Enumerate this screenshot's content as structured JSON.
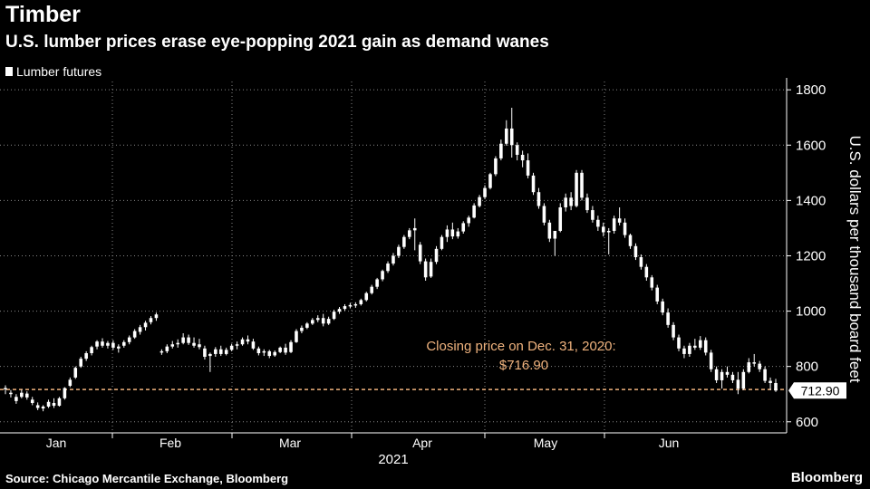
{
  "header": {
    "kicker": "Timber",
    "headline": "U.S. lumber prices erase eye-popping 2021 gain as demand wanes"
  },
  "footer": {
    "source": "Source: Chicago Mercantile Exchange, Bloomberg",
    "brand": "Bloomberg"
  },
  "colors": {
    "background": "#000000",
    "candle": "#ffffff",
    "reference_line": "#f0b37e",
    "grid": "#888888"
  },
  "chart_data": {
    "type": "candlestick",
    "legend": [
      "Lumber futures"
    ],
    "ylabel": "U.S. dollars per thousand board feet",
    "ylim": [
      560,
      1830
    ],
    "yticks": [
      600,
      800,
      1000,
      1200,
      1400,
      1600,
      1800
    ],
    "x_tick_labels": [
      "Jan",
      "Feb",
      "Mar",
      "Apr",
      "May",
      "Jun"
    ],
    "x_year_label": "2021",
    "last_value_label": "712.90",
    "reference_line": {
      "value": 716.9,
      "label_line1": "Closing price on Dec. 31, 2020:",
      "label_line2": "$716.90"
    },
    "series": [
      {
        "name": "Lumber futures",
        "values": [
          {
            "o": 717,
            "h": 732,
            "l": 700,
            "c": 722
          },
          {
            "o": 705,
            "h": 715,
            "l": 688,
            "c": 700
          },
          {
            "o": 690,
            "h": 700,
            "l": 665,
            "c": 675
          },
          {
            "o": 690,
            "h": 716,
            "l": 685,
            "c": 705
          },
          {
            "o": 702,
            "h": 710,
            "l": 680,
            "c": 688
          },
          {
            "o": 680,
            "h": 690,
            "l": 660,
            "c": 668
          },
          {
            "o": 660,
            "h": 670,
            "l": 642,
            "c": 650
          },
          {
            "o": 648,
            "h": 660,
            "l": 638,
            "c": 655
          },
          {
            "o": 655,
            "h": 680,
            "l": 650,
            "c": 672
          },
          {
            "o": 668,
            "h": 685,
            "l": 650,
            "c": 658
          },
          {
            "o": 658,
            "h": 690,
            "l": 655,
            "c": 685
          },
          {
            "o": 685,
            "h": 725,
            "l": 680,
            "c": 722
          },
          {
            "o": 730,
            "h": 760,
            "l": 725,
            "c": 752
          },
          {
            "o": 760,
            "h": 800,
            "l": 755,
            "c": 795
          },
          {
            "o": 800,
            "h": 835,
            "l": 795,
            "c": 828
          },
          {
            "o": 828,
            "h": 855,
            "l": 820,
            "c": 848
          },
          {
            "o": 848,
            "h": 875,
            "l": 840,
            "c": 870
          },
          {
            "o": 872,
            "h": 895,
            "l": 862,
            "c": 890
          },
          {
            "o": 890,
            "h": 902,
            "l": 868,
            "c": 875
          },
          {
            "o": 875,
            "h": 892,
            "l": 865,
            "c": 885
          },
          {
            "o": 885,
            "h": 895,
            "l": 860,
            "c": 868
          },
          {
            "o": 865,
            "h": 880,
            "l": 850,
            "c": 872
          },
          {
            "o": 875,
            "h": 895,
            "l": 868,
            "c": 888
          },
          {
            "o": 888,
            "h": 912,
            "l": 880,
            "c": 905
          },
          {
            "o": 905,
            "h": 935,
            "l": 900,
            "c": 928
          },
          {
            "o": 925,
            "h": 950,
            "l": 915,
            "c": 942
          },
          {
            "o": 942,
            "h": 965,
            "l": 930,
            "c": 958
          },
          {
            "o": 960,
            "h": 982,
            "l": 952,
            "c": 975
          },
          {
            "o": 975,
            "h": 995,
            "l": 965,
            "c": 988
          },
          {
            "o": 850,
            "h": 862,
            "l": 842,
            "c": 855
          },
          {
            "o": 855,
            "h": 880,
            "l": 848,
            "c": 872
          },
          {
            "o": 872,
            "h": 892,
            "l": 865,
            "c": 880
          },
          {
            "o": 880,
            "h": 898,
            "l": 868,
            "c": 885
          },
          {
            "o": 885,
            "h": 920,
            "l": 880,
            "c": 905
          },
          {
            "o": 905,
            "h": 915,
            "l": 878,
            "c": 885
          },
          {
            "o": 885,
            "h": 905,
            "l": 868,
            "c": 875
          },
          {
            "o": 880,
            "h": 900,
            "l": 862,
            "c": 870
          },
          {
            "o": 865,
            "h": 875,
            "l": 825,
            "c": 835
          },
          {
            "o": 838,
            "h": 850,
            "l": 780,
            "c": 845
          },
          {
            "o": 845,
            "h": 870,
            "l": 835,
            "c": 862
          },
          {
            "o": 862,
            "h": 875,
            "l": 838,
            "c": 845
          },
          {
            "o": 845,
            "h": 868,
            "l": 840,
            "c": 860
          },
          {
            "o": 860,
            "h": 882,
            "l": 855,
            "c": 875
          },
          {
            "o": 875,
            "h": 890,
            "l": 862,
            "c": 880
          },
          {
            "o": 880,
            "h": 905,
            "l": 875,
            "c": 898
          },
          {
            "o": 898,
            "h": 912,
            "l": 880,
            "c": 890
          },
          {
            "o": 890,
            "h": 900,
            "l": 860,
            "c": 865
          },
          {
            "o": 865,
            "h": 872,
            "l": 840,
            "c": 848
          },
          {
            "o": 850,
            "h": 862,
            "l": 838,
            "c": 855
          },
          {
            "o": 855,
            "h": 860,
            "l": 830,
            "c": 838
          },
          {
            "o": 840,
            "h": 858,
            "l": 835,
            "c": 852
          },
          {
            "o": 852,
            "h": 872,
            "l": 848,
            "c": 868
          },
          {
            "o": 868,
            "h": 882,
            "l": 842,
            "c": 850
          },
          {
            "o": 852,
            "h": 895,
            "l": 848,
            "c": 888
          },
          {
            "o": 888,
            "h": 935,
            "l": 885,
            "c": 928
          },
          {
            "o": 928,
            "h": 948,
            "l": 920,
            "c": 940
          },
          {
            "o": 940,
            "h": 960,
            "l": 935,
            "c": 955
          },
          {
            "o": 955,
            "h": 975,
            "l": 950,
            "c": 968
          },
          {
            "o": 968,
            "h": 985,
            "l": 960,
            "c": 975
          },
          {
            "o": 975,
            "h": 990,
            "l": 945,
            "c": 955
          },
          {
            "o": 955,
            "h": 980,
            "l": 950,
            "c": 972
          },
          {
            "o": 972,
            "h": 1005,
            "l": 968,
            "c": 998
          },
          {
            "o": 998,
            "h": 1015,
            "l": 990,
            "c": 1008
          },
          {
            "o": 1008,
            "h": 1025,
            "l": 1002,
            "c": 1018
          },
          {
            "o": 1018,
            "h": 1030,
            "l": 1010,
            "c": 1022
          },
          {
            "o": 1022,
            "h": 1032,
            "l": 1012,
            "c": 1025
          },
          {
            "o": 1025,
            "h": 1045,
            "l": 1020,
            "c": 1040
          },
          {
            "o": 1040,
            "h": 1070,
            "l": 1035,
            "c": 1065
          },
          {
            "o": 1065,
            "h": 1095,
            "l": 1060,
            "c": 1088
          },
          {
            "o": 1088,
            "h": 1120,
            "l": 1080,
            "c": 1115
          },
          {
            "o": 1115,
            "h": 1150,
            "l": 1108,
            "c": 1145
          },
          {
            "o": 1145,
            "h": 1180,
            "l": 1138,
            "c": 1172
          },
          {
            "o": 1172,
            "h": 1210,
            "l": 1165,
            "c": 1200
          },
          {
            "o": 1200,
            "h": 1240,
            "l": 1192,
            "c": 1232
          },
          {
            "o": 1232,
            "h": 1275,
            "l": 1225,
            "c": 1268
          },
          {
            "o": 1268,
            "h": 1300,
            "l": 1260,
            "c": 1292
          },
          {
            "o": 1292,
            "h": 1335,
            "l": 1220,
            "c": 1300
          },
          {
            "o": 1240,
            "h": 1250,
            "l": 1170,
            "c": 1180
          },
          {
            "o": 1180,
            "h": 1190,
            "l": 1110,
            "c": 1122
          },
          {
            "o": 1125,
            "h": 1190,
            "l": 1120,
            "c": 1178
          },
          {
            "o": 1178,
            "h": 1235,
            "l": 1170,
            "c": 1225
          },
          {
            "o": 1225,
            "h": 1275,
            "l": 1220,
            "c": 1268
          },
          {
            "o": 1268,
            "h": 1310,
            "l": 1250,
            "c": 1295
          },
          {
            "o": 1295,
            "h": 1320,
            "l": 1260,
            "c": 1270
          },
          {
            "o": 1270,
            "h": 1300,
            "l": 1262,
            "c": 1288
          },
          {
            "o": 1288,
            "h": 1325,
            "l": 1280,
            "c": 1318
          },
          {
            "o": 1318,
            "h": 1345,
            "l": 1305,
            "c": 1338
          },
          {
            "o": 1338,
            "h": 1390,
            "l": 1335,
            "c": 1382
          },
          {
            "o": 1380,
            "h": 1420,
            "l": 1375,
            "c": 1412
          },
          {
            "o": 1412,
            "h": 1455,
            "l": 1405,
            "c": 1445
          },
          {
            "o": 1445,
            "h": 1500,
            "l": 1440,
            "c": 1495
          },
          {
            "o": 1495,
            "h": 1560,
            "l": 1488,
            "c": 1552
          },
          {
            "o": 1552,
            "h": 1620,
            "l": 1545,
            "c": 1605
          },
          {
            "o": 1605,
            "h": 1690,
            "l": 1598,
            "c": 1660
          },
          {
            "o": 1660,
            "h": 1735,
            "l": 1555,
            "c": 1600
          },
          {
            "o": 1600,
            "h": 1610,
            "l": 1545,
            "c": 1565
          },
          {
            "o": 1565,
            "h": 1580,
            "l": 1520,
            "c": 1545
          },
          {
            "o": 1545,
            "h": 1570,
            "l": 1480,
            "c": 1490
          },
          {
            "o": 1490,
            "h": 1500,
            "l": 1420,
            "c": 1430
          },
          {
            "o": 1430,
            "h": 1445,
            "l": 1370,
            "c": 1380
          },
          {
            "o": 1380,
            "h": 1390,
            "l": 1310,
            "c": 1320
          },
          {
            "o": 1320,
            "h": 1330,
            "l": 1250,
            "c": 1262
          },
          {
            "o": 1262,
            "h": 1275,
            "l": 1200,
            "c": 1290
          },
          {
            "o": 1290,
            "h": 1390,
            "l": 1285,
            "c": 1375
          },
          {
            "o": 1375,
            "h": 1425,
            "l": 1360,
            "c": 1410
          },
          {
            "o": 1410,
            "h": 1430,
            "l": 1365,
            "c": 1380
          },
          {
            "o": 1380,
            "h": 1510,
            "l": 1375,
            "c": 1500
          },
          {
            "o": 1500,
            "h": 1510,
            "l": 1400,
            "c": 1410
          },
          {
            "o": 1410,
            "h": 1425,
            "l": 1355,
            "c": 1365
          },
          {
            "o": 1365,
            "h": 1380,
            "l": 1320,
            "c": 1330
          },
          {
            "o": 1330,
            "h": 1345,
            "l": 1290,
            "c": 1305
          },
          {
            "o": 1305,
            "h": 1320,
            "l": 1270,
            "c": 1285
          },
          {
            "o": 1285,
            "h": 1300,
            "l": 1205,
            "c": 1290
          },
          {
            "o": 1290,
            "h": 1345,
            "l": 1280,
            "c": 1335
          },
          {
            "o": 1335,
            "h": 1375,
            "l": 1310,
            "c": 1320
          },
          {
            "o": 1320,
            "h": 1335,
            "l": 1265,
            "c": 1275
          },
          {
            "o": 1275,
            "h": 1280,
            "l": 1225,
            "c": 1235
          },
          {
            "o": 1235,
            "h": 1245,
            "l": 1185,
            "c": 1195
          },
          {
            "o": 1195,
            "h": 1205,
            "l": 1150,
            "c": 1160
          },
          {
            "o": 1160,
            "h": 1170,
            "l": 1110,
            "c": 1122
          },
          {
            "o": 1122,
            "h": 1130,
            "l": 1075,
            "c": 1085
          },
          {
            "o": 1085,
            "h": 1095,
            "l": 1025,
            "c": 1035
          },
          {
            "o": 1035,
            "h": 1045,
            "l": 985,
            "c": 995
          },
          {
            "o": 995,
            "h": 1010,
            "l": 940,
            "c": 950
          },
          {
            "o": 950,
            "h": 960,
            "l": 895,
            "c": 905
          },
          {
            "o": 905,
            "h": 915,
            "l": 855,
            "c": 865
          },
          {
            "o": 865,
            "h": 875,
            "l": 830,
            "c": 845
          },
          {
            "o": 845,
            "h": 885,
            "l": 835,
            "c": 875
          },
          {
            "o": 875,
            "h": 900,
            "l": 860,
            "c": 868
          },
          {
            "o": 868,
            "h": 910,
            "l": 860,
            "c": 895
          },
          {
            "o": 895,
            "h": 905,
            "l": 840,
            "c": 850
          },
          {
            "o": 850,
            "h": 860,
            "l": 780,
            "c": 790
          },
          {
            "o": 790,
            "h": 800,
            "l": 740,
            "c": 750
          },
          {
            "o": 750,
            "h": 790,
            "l": 720,
            "c": 780
          },
          {
            "o": 780,
            "h": 800,
            "l": 760,
            "c": 770
          },
          {
            "o": 770,
            "h": 780,
            "l": 740,
            "c": 750
          },
          {
            "o": 752,
            "h": 780,
            "l": 700,
            "c": 720
          },
          {
            "o": 720,
            "h": 790,
            "l": 715,
            "c": 780
          },
          {
            "o": 780,
            "h": 830,
            "l": 775,
            "c": 815
          },
          {
            "o": 815,
            "h": 845,
            "l": 800,
            "c": 810
          },
          {
            "o": 810,
            "h": 820,
            "l": 780,
            "c": 790
          },
          {
            "o": 790,
            "h": 800,
            "l": 740,
            "c": 748
          },
          {
            "o": 748,
            "h": 760,
            "l": 715,
            "c": 740
          },
          {
            "o": 740,
            "h": 755,
            "l": 708,
            "c": 712.9
          }
        ]
      }
    ]
  }
}
